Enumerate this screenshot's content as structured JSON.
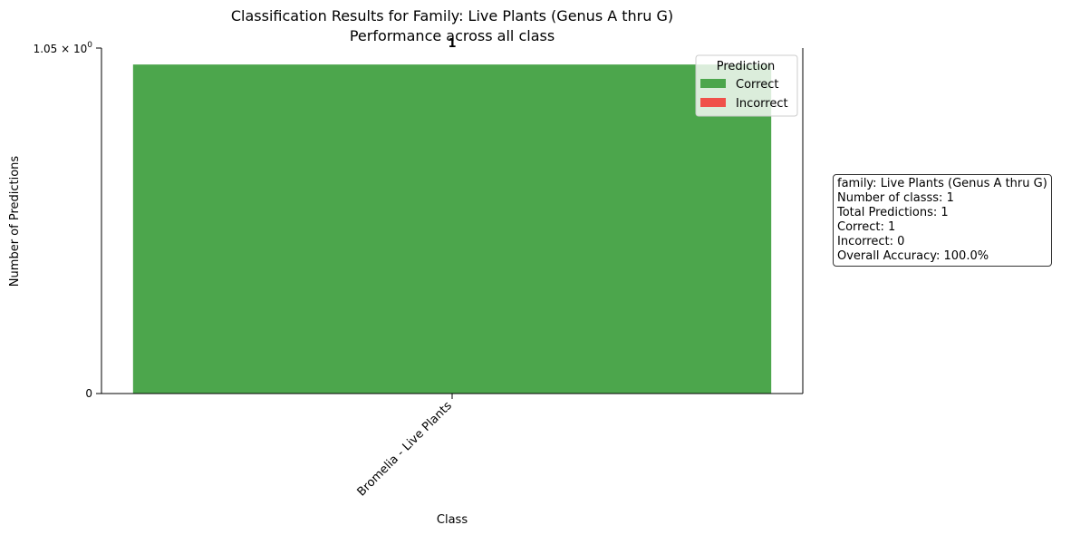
{
  "chart_data": {
    "type": "bar",
    "title": "Classification Results for Family: Live Plants (Genus A thru G)",
    "subtitle": "Performance across all class",
    "xlabel": "Class",
    "ylabel": "Number of Predictions",
    "categories": [
      "Bromelia - Live Plants"
    ],
    "series": [
      {
        "name": "Correct",
        "values": [
          1
        ],
        "color": "#4ca64c"
      },
      {
        "name": "Incorrect",
        "values": [
          0
        ],
        "color": "#f0514a"
      }
    ],
    "stacked": true,
    "ylim": [
      0,
      1.05
    ],
    "yscale": "symlog",
    "ytick_labels": [
      "0",
      "1.05 × 10^0"
    ],
    "bar_labels": [
      "1"
    ],
    "legend": {
      "title": "Prediction",
      "placement": "top-right"
    },
    "grid": false
  },
  "info_box": {
    "lines": [
      "family: Live Plants (Genus A thru G)",
      "Number of classs: 1",
      "Total Predictions: 1",
      "Correct: 1",
      "Incorrect: 0",
      "Overall Accuracy: 100.0%"
    ]
  }
}
